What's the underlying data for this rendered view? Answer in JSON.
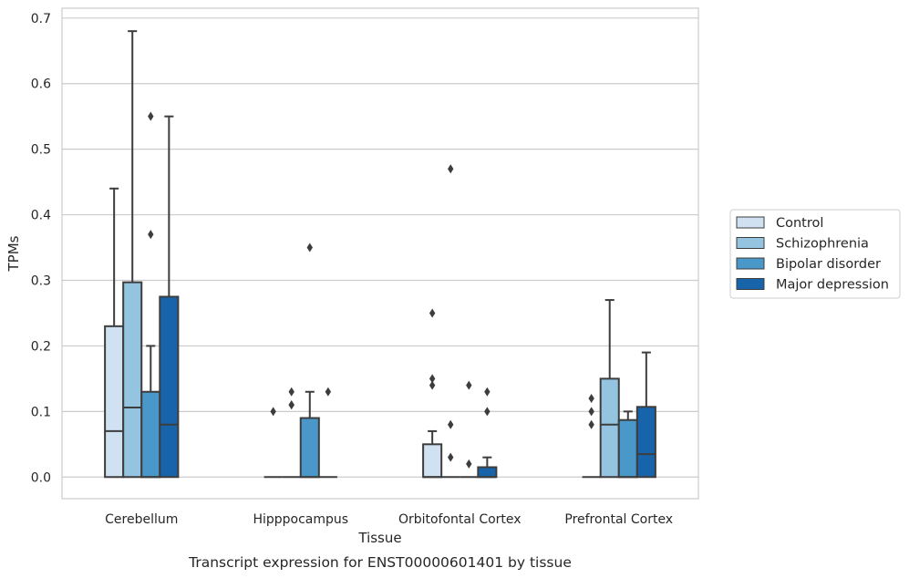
{
  "caption": "Transcript expression for ENST00000601401 by tissue",
  "chart_data": {
    "type": "box",
    "title": "",
    "xlabel": "Tissue",
    "ylabel": "TPMs",
    "ylim": [
      -0.033,
      0.715
    ],
    "yticks": [
      0.0,
      0.1,
      0.2,
      0.3,
      0.4,
      0.5,
      0.6,
      0.7
    ],
    "ytick_labels": [
      "0.0",
      "0.1",
      "0.2",
      "0.3",
      "0.4",
      "0.5",
      "0.6",
      "0.7"
    ],
    "grid": true,
    "legend_position": "center-right",
    "categories": [
      "Cerebellum",
      "Hipppocampus",
      "Orbitofontal Cortex",
      "Prefrontal Cortex"
    ],
    "series": [
      {
        "name": "Control",
        "color": "#d0e1f2",
        "boxes": [
          {
            "min": 0.0,
            "q1": 0.0,
            "median": 0.07,
            "q3": 0.23,
            "max": 0.44,
            "outliers": []
          },
          {
            "min": 0.0,
            "q1": 0.0,
            "median": 0.0,
            "q3": 0.0,
            "max": 0.0,
            "outliers": [
              0.1
            ]
          },
          {
            "min": 0.0,
            "q1": 0.0,
            "median": 0.0,
            "q3": 0.05,
            "max": 0.07,
            "outliers": [
              0.14,
              0.15,
              0.25
            ]
          },
          {
            "min": 0.0,
            "q1": 0.0,
            "median": 0.0,
            "q3": 0.0,
            "max": 0.0,
            "outliers": [
              0.08,
              0.1,
              0.12
            ]
          }
        ]
      },
      {
        "name": "Schizophrenia",
        "color": "#94c4df",
        "boxes": [
          {
            "min": 0.0,
            "q1": 0.0,
            "median": 0.106,
            "q3": 0.297,
            "max": 0.68,
            "outliers": []
          },
          {
            "min": 0.0,
            "q1": 0.0,
            "median": 0.0,
            "q3": 0.0,
            "max": 0.0,
            "outliers": [
              0.11,
              0.11,
              0.13
            ]
          },
          {
            "min": 0.0,
            "q1": 0.0,
            "median": 0.0,
            "q3": 0.0,
            "max": 0.0,
            "outliers": [
              0.03,
              0.08,
              0.47
            ]
          },
          {
            "min": 0.0,
            "q1": 0.0,
            "median": 0.08,
            "q3": 0.15,
            "max": 0.27,
            "outliers": []
          }
        ]
      },
      {
        "name": "Bipolar disorder",
        "color": "#4a98c9",
        "boxes": [
          {
            "min": 0.0,
            "q1": 0.0,
            "median": 0.0,
            "q3": 0.13,
            "max": 0.2,
            "outliers": [
              0.37,
              0.55
            ]
          },
          {
            "min": 0.0,
            "q1": 0.0,
            "median": 0.0,
            "q3": 0.09,
            "max": 0.13,
            "outliers": [
              0.35
            ]
          },
          {
            "min": 0.0,
            "q1": 0.0,
            "median": 0.0,
            "q3": 0.0,
            "max": 0.0,
            "outliers": [
              0.02,
              0.14
            ]
          },
          {
            "min": 0.0,
            "q1": 0.0,
            "median": 0.0,
            "q3": 0.087,
            "max": 0.1,
            "outliers": []
          }
        ]
      },
      {
        "name": "Major depression",
        "color": "#1764ab",
        "boxes": [
          {
            "min": 0.0,
            "q1": 0.0,
            "median": 0.08,
            "q3": 0.275,
            "max": 0.55,
            "outliers": []
          },
          {
            "min": 0.0,
            "q1": 0.0,
            "median": 0.0,
            "q3": 0.0,
            "max": 0.0,
            "outliers": [
              0.13
            ]
          },
          {
            "min": 0.0,
            "q1": 0.0,
            "median": 0.0,
            "q3": 0.015,
            "max": 0.03,
            "outliers": [
              0.1,
              0.13
            ]
          },
          {
            "min": 0.0,
            "q1": 0.0,
            "median": 0.035,
            "q3": 0.107,
            "max": 0.19,
            "outliers": []
          }
        ]
      }
    ]
  }
}
